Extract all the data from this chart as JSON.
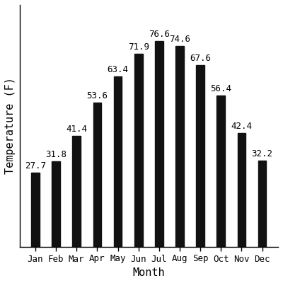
{
  "months": [
    "Jan",
    "Feb",
    "Mar",
    "Apr",
    "May",
    "Jun",
    "Jul",
    "Aug",
    "Sep",
    "Oct",
    "Nov",
    "Dec"
  ],
  "temperatures": [
    27.7,
    31.8,
    41.4,
    53.6,
    63.4,
    71.9,
    76.6,
    74.6,
    67.6,
    56.4,
    42.4,
    32.2
  ],
  "bar_color": "#111111",
  "background_color": "#ffffff",
  "xlabel": "Month",
  "ylabel": "Temperature (F)",
  "ylim": [
    0,
    90
  ],
  "bar_width": 0.4,
  "label_fontsize": 9,
  "axis_label_fontsize": 11,
  "tick_fontsize": 9,
  "font_family": "monospace"
}
